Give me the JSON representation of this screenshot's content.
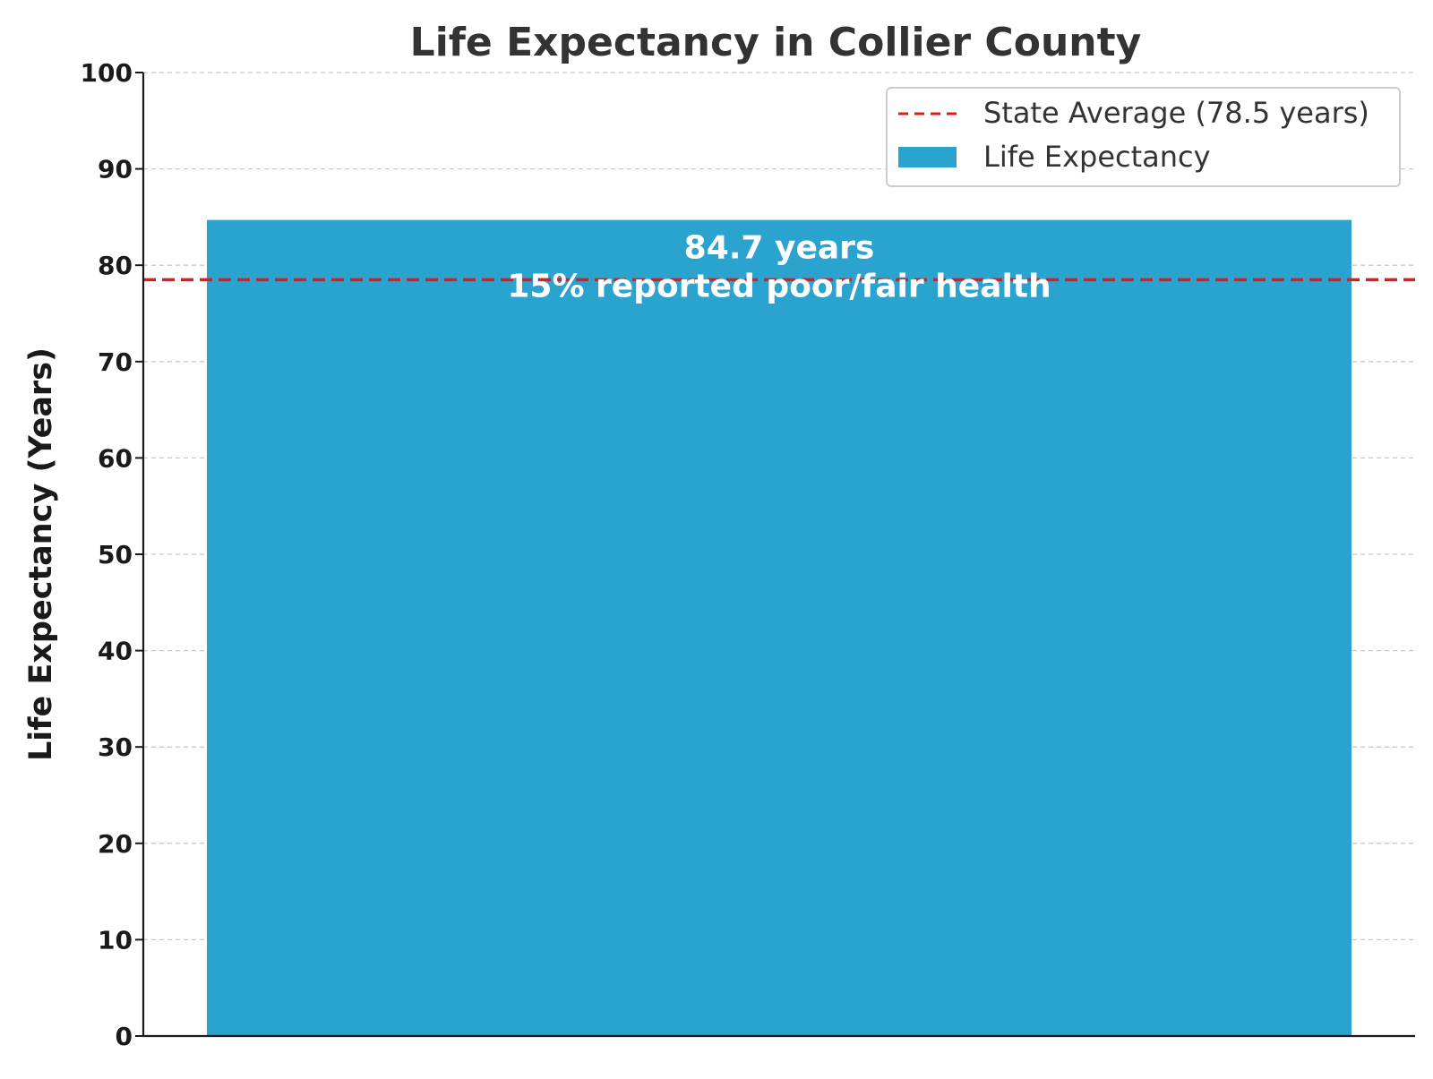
{
  "chart_data": {
    "type": "bar",
    "title": "Life Expectancy in Collier County",
    "xlabel": "",
    "ylabel": "Life Expectancy (Years)",
    "ylim": [
      0,
      100
    ],
    "yticks": [
      0,
      10,
      20,
      30,
      40,
      50,
      60,
      70,
      80,
      90,
      100
    ],
    "grid": true,
    "categories": [
      ""
    ],
    "series": [
      {
        "name": "Life Expectancy",
        "values": [
          84.7
        ],
        "color": "#2ba3cf"
      }
    ],
    "reference_line": {
      "name": "State Average (78.5 years)",
      "value": 78.5,
      "color": "#e31a1c",
      "style": "dashed"
    },
    "bar_annotations": [
      "84.7 years",
      "15% reported poor/fair health"
    ],
    "legend": {
      "placement": "top-right",
      "entries": [
        "State Average (78.5 years)",
        "Life Expectancy"
      ]
    }
  }
}
